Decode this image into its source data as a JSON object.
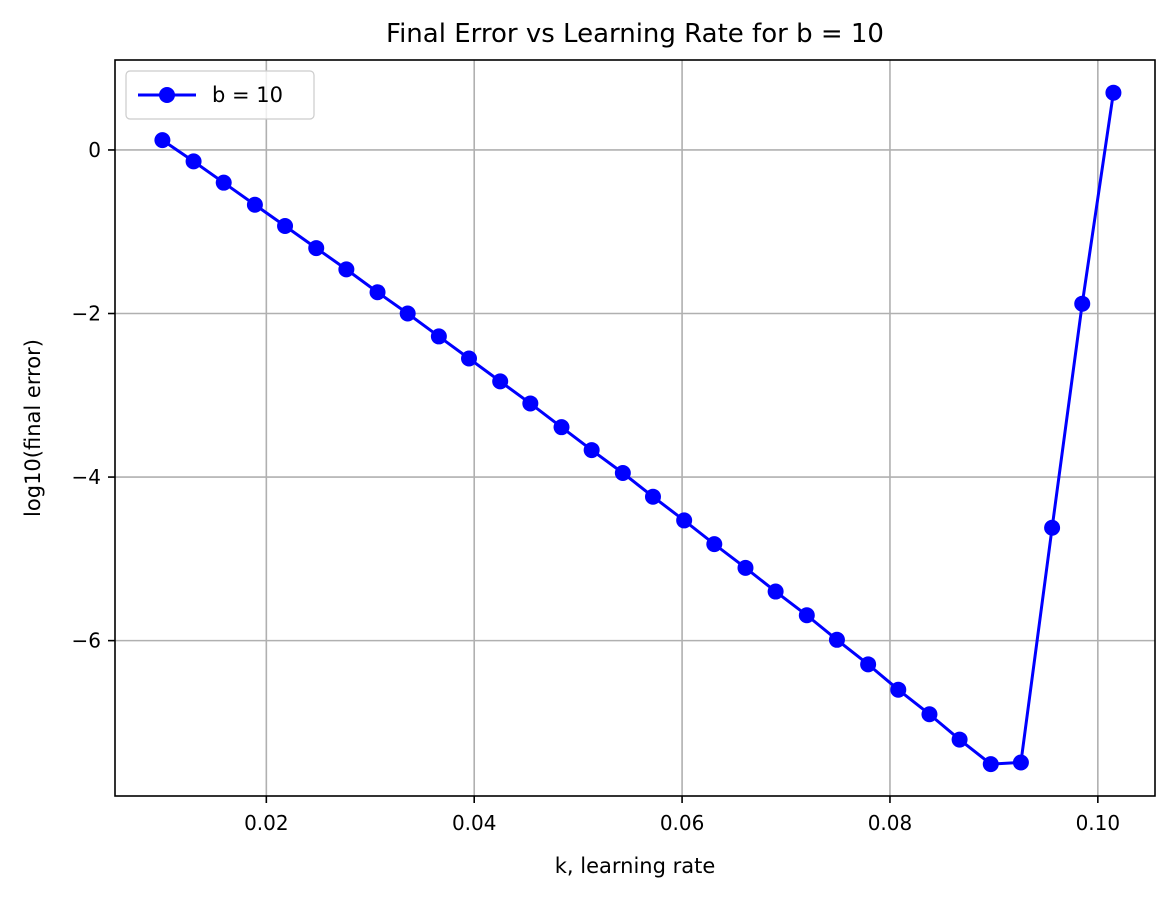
{
  "chart_data": {
    "type": "line",
    "title": "Final Error vs Learning Rate for b = 10",
    "xlabel": "k, learning rate",
    "ylabel": "log10(final error)",
    "xlim": [
      0.00544,
      0.1055
    ],
    "ylim": [
      -7.9,
      1.1
    ],
    "xticks": [
      0.02,
      0.04,
      0.06,
      0.08,
      0.1
    ],
    "xtick_labels": [
      "0.02",
      "0.04",
      "0.06",
      "0.08",
      "0.10"
    ],
    "yticks": [
      0,
      -2,
      -4,
      -6
    ],
    "ytick_labels": [
      "0",
      "−2",
      "−4",
      "−6"
    ],
    "grid": true,
    "legend_position": "top-left",
    "series": [
      {
        "name": "b = 10",
        "color": "#0000ff",
        "marker": "circle",
        "x": [
          0.01,
          0.013,
          0.0159,
          0.0189,
          0.0218,
          0.0248,
          0.0277,
          0.0307,
          0.0336,
          0.0366,
          0.0395,
          0.0425,
          0.0454,
          0.0484,
          0.0513,
          0.0543,
          0.0572,
          0.0602,
          0.0631,
          0.0661,
          0.069,
          0.072,
          0.0749,
          0.0779,
          0.0808,
          0.0838,
          0.0867,
          0.0897,
          0.0926,
          0.0956,
          0.0985,
          0.1015
        ],
        "y": [
          0.12,
          -0.14,
          -0.4,
          -0.67,
          -0.93,
          -1.2,
          -1.46,
          -1.74,
          -2.0,
          -2.28,
          -2.55,
          -2.83,
          -3.1,
          -3.39,
          -3.67,
          -3.95,
          -4.24,
          -4.53,
          -4.82,
          -5.11,
          -5.4,
          -5.69,
          -5.99,
          -6.29,
          -6.6,
          -6.9,
          -7.21,
          -7.51,
          -7.49,
          -4.62,
          -1.88,
          0.7
        ]
      }
    ]
  }
}
